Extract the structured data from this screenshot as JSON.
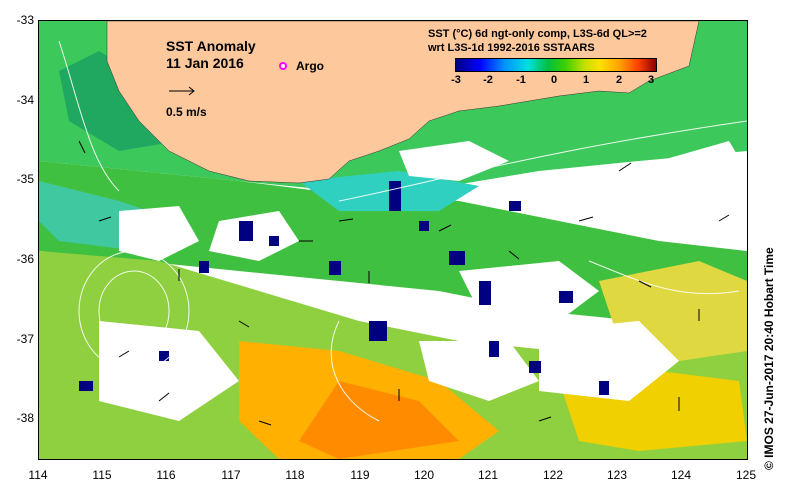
{
  "map": {
    "title_line1": "SST Anomaly",
    "title_line2": "11 Jan 2016",
    "argo_label": "Argo",
    "scale_label": "0.5 m/s",
    "legend_line1": "SST (°C) 6d ngt-only comp, L3S-6d QL>=2",
    "legend_line2": "wrt L3S-1d 1992-2016 SSTAARS",
    "colorbar_ticks": [
      "-3",
      "-2",
      "-1",
      "0",
      "1",
      "2",
      "3"
    ],
    "x_ticks": [
      "114",
      "115",
      "116",
      "117",
      "118",
      "119",
      "120",
      "121",
      "122",
      "123",
      "124",
      "125"
    ],
    "y_ticks": [
      "-33",
      "-34",
      "-35",
      "-36",
      "-37",
      "-38"
    ],
    "credit": "© IMOS 27-Jun-2017 20:40 Hobart Time"
  },
  "colors": {
    "land": "#fcc89c",
    "argo": "#ff00ff"
  }
}
